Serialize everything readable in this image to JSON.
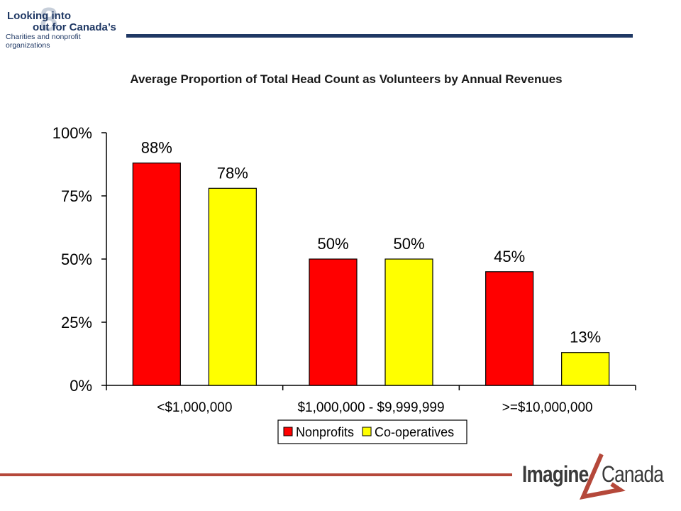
{
  "header": {
    "logo_line1": "Looking into",
    "logo_line2": "out for Canada’s",
    "logo_line3": "Charities and nonprofit organizations",
    "logo_numeral": "8"
  },
  "footer": {
    "logo_word1": "Imagine",
    "logo_word2": "Canada"
  },
  "colors": {
    "nonprofits": "#ff0000",
    "cooperatives": "#ffff00",
    "header_rule": "#1f3864",
    "footer_rule": "#b5483a",
    "logo_accent": "#b5483a"
  },
  "chart_data": {
    "type": "bar",
    "title": "Average Proportion of Total Head Count as Volunteers by Annual Revenues",
    "categories": [
      "<$1,000,000",
      "$1,000,000 - $9,999,999",
      ">=$10,000,000"
    ],
    "series": [
      {
        "name": "Nonprofits",
        "values": [
          88,
          50,
          45
        ],
        "labels": [
          "88%",
          "50%",
          "45%"
        ],
        "color": "#ff0000"
      },
      {
        "name": "Co-operatives",
        "values": [
          78,
          50,
          13
        ],
        "labels": [
          "78%",
          "50%",
          "13%"
        ],
        "color": "#ffff00"
      }
    ],
    "ylim": [
      0,
      100
    ],
    "yticks": [
      0,
      25,
      50,
      75,
      100
    ],
    "ytick_labels": [
      "0%",
      "25%",
      "50%",
      "75%",
      "100%"
    ],
    "xlabel": "",
    "ylabel": "",
    "grid": false,
    "legend_position": "bottom-center"
  }
}
